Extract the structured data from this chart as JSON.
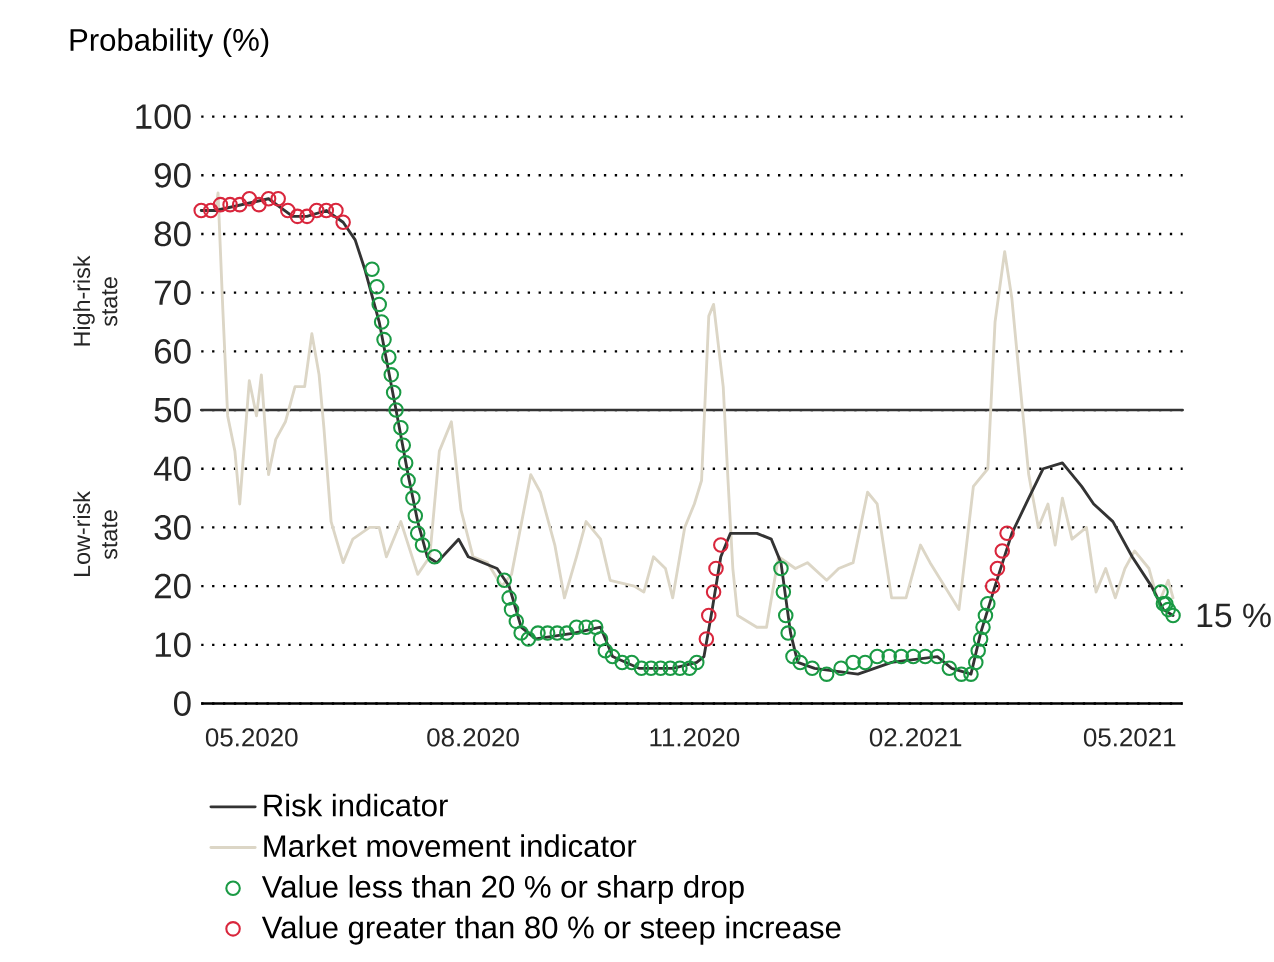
{
  "chart_data": {
    "type": "line",
    "ylabel": "Probability (%)",
    "xlim": [
      "2020-04-10",
      "2021-05-23"
    ],
    "xticks": [
      {
        "value": "2020-05-01",
        "label": "05.2020"
      },
      {
        "value": "2020-08-01",
        "label": "08.2020"
      },
      {
        "value": "2020-11-01",
        "label": "11.2020"
      },
      {
        "value": "2021-02-01",
        "label": "02.2021"
      },
      {
        "value": "2021-05-01",
        "label": "05.2021"
      }
    ],
    "ylim": [
      0,
      100
    ],
    "yticks": [
      0,
      10,
      20,
      30,
      40,
      50,
      60,
      70,
      80,
      90,
      100
    ],
    "grid": "y",
    "legend": "bottom",
    "ref_lines": [
      {
        "axis": "y",
        "value": 50,
        "color": "#333333"
      }
    ],
    "annotations": [
      "High-risk state",
      "Low-risk state",
      {
        "text": "15 %",
        "x": "2021-05-19",
        "y": 15
      }
    ],
    "series": [
      {
        "name": "Risk indicator",
        "type": "line",
        "color": "#333333",
        "x": [
          "2020-04-10",
          "2020-04-16",
          "2020-05-08",
          "2020-05-18",
          "2020-05-24",
          "2020-06-01",
          "2020-06-08",
          "2020-06-13",
          "2020-06-17",
          "2020-06-23",
          "2020-06-30",
          "2020-07-05",
          "2020-07-09",
          "2020-07-13",
          "2020-07-17",
          "2020-07-26",
          "2020-07-30",
          "2020-08-11",
          "2020-08-16",
          "2020-08-21",
          "2020-08-27",
          "2020-09-12",
          "2020-09-23",
          "2020-09-28",
          "2020-10-09",
          "2020-10-23",
          "2020-11-02",
          "2020-11-05",
          "2020-11-08",
          "2020-11-12",
          "2020-11-16",
          "2020-11-27",
          "2020-12-03",
          "2020-12-07",
          "2020-12-11",
          "2020-12-14",
          "2020-12-21",
          "2021-01-08",
          "2021-01-22",
          "2021-02-10",
          "2021-02-16",
          "2021-02-24",
          "2021-02-28",
          "2021-03-06",
          "2021-03-13",
          "2021-03-20",
          "2021-03-26",
          "2021-04-03",
          "2021-04-11",
          "2021-04-16",
          "2021-04-24",
          "2021-05-02",
          "2021-05-10",
          "2021-05-15",
          "2021-05-19"
        ],
        "values": [
          84,
          84,
          86,
          83,
          83,
          84,
          82,
          79,
          74,
          65,
          50,
          39,
          31,
          25,
          24,
          28,
          25,
          23,
          20,
          13,
          11,
          12,
          13,
          8,
          6,
          6,
          7,
          8,
          15,
          25,
          29,
          29,
          28,
          24,
          12,
          7,
          6,
          5,
          7,
          8,
          6,
          5,
          12,
          20,
          29,
          35,
          40,
          41,
          37,
          34,
          31,
          25,
          20,
          16,
          15
        ]
      },
      {
        "name": "Market movement indicator",
        "type": "line",
        "color": "#dcd6c6",
        "x": [
          "2020-04-16",
          "2020-04-17",
          "2020-04-19",
          "2020-04-21",
          "2020-04-24",
          "2020-04-26",
          "2020-04-30",
          "2020-05-03",
          "2020-05-05",
          "2020-05-08",
          "2020-05-11",
          "2020-05-15",
          "2020-05-19",
          "2020-05-23",
          "2020-05-26",
          "2020-05-29",
          "2020-05-31",
          "2020-06-03",
          "2020-06-08",
          "2020-06-12",
          "2020-06-19",
          "2020-06-23",
          "2020-06-26",
          "2020-07-02",
          "2020-07-09",
          "2020-07-14",
          "2020-07-18",
          "2020-07-23",
          "2020-07-27",
          "2020-08-01",
          "2020-08-07",
          "2020-08-13",
          "2020-08-17",
          "2020-08-25",
          "2020-08-29",
          "2020-09-04",
          "2020-09-08",
          "2020-09-13",
          "2020-09-17",
          "2020-09-23",
          "2020-09-27",
          "2020-10-07",
          "2020-10-11",
          "2020-10-15",
          "2020-10-20",
          "2020-10-23",
          "2020-10-28",
          "2020-11-01",
          "2020-11-04",
          "2020-11-07",
          "2020-11-09",
          "2020-11-13",
          "2020-11-15",
          "2020-11-17",
          "2020-11-19",
          "2020-11-27",
          "2020-12-01",
          "2020-12-06",
          "2020-12-13",
          "2020-12-18",
          "2020-12-26",
          "2020-12-31",
          "2021-01-06",
          "2021-01-12",
          "2021-01-16",
          "2021-01-22",
          "2021-01-28",
          "2021-02-03",
          "2021-02-07",
          "2021-02-13",
          "2021-02-19",
          "2021-02-25",
          "2021-03-03",
          "2021-03-06",
          "2021-03-10",
          "2021-03-13",
          "2021-03-16",
          "2021-03-20",
          "2021-03-24",
          "2021-03-28",
          "2021-03-31",
          "2021-04-03",
          "2021-04-07",
          "2021-04-13",
          "2021-04-17",
          "2021-04-21",
          "2021-04-25",
          "2021-04-29",
          "2021-05-03",
          "2021-05-09",
          "2021-05-13",
          "2021-05-17",
          "2021-05-19"
        ],
        "values": [
          84,
          87,
          67,
          49,
          43,
          34,
          55,
          49,
          56,
          39,
          45,
          48,
          54,
          54,
          63,
          56,
          47,
          31,
          24,
          28,
          30,
          30,
          25,
          31,
          22,
          25,
          43,
          48,
          33,
          25,
          24,
          20,
          22,
          39,
          36,
          27,
          18,
          25,
          31,
          28,
          21,
          20,
          19,
          25,
          23,
          18,
          30,
          34,
          38,
          66,
          68,
          54,
          38,
          23,
          15,
          13,
          13,
          25,
          23,
          24,
          21,
          23,
          24,
          36,
          34,
          18,
          18,
          27,
          24,
          20,
          16,
          37,
          40,
          65,
          77,
          69,
          56,
          39,
          30,
          34,
          27,
          35,
          28,
          30,
          19,
          23,
          18,
          23,
          26,
          23,
          17,
          21,
          18
        ]
      },
      {
        "name": "Value less than 20 % or sharp drop",
        "type": "scatter",
        "marker": "circle",
        "color": "#1a9a44",
        "x": [
          "2020-06-20",
          "2020-06-22",
          "2020-06-23",
          "2020-06-24",
          "2020-06-25",
          "2020-06-27",
          "2020-06-28",
          "2020-06-29",
          "2020-06-30",
          "2020-07-02",
          "2020-07-03",
          "2020-07-04",
          "2020-07-05",
          "2020-07-07",
          "2020-07-08",
          "2020-07-09",
          "2020-07-11",
          "2020-07-16",
          "2020-08-14",
          "2020-08-16",
          "2020-08-17",
          "2020-08-19",
          "2020-08-21",
          "2020-08-24",
          "2020-08-28",
          "2020-09-01",
          "2020-09-05",
          "2020-09-09",
          "2020-09-13",
          "2020-09-17",
          "2020-09-21",
          "2020-09-23",
          "2020-09-25",
          "2020-09-28",
          "2020-10-02",
          "2020-10-06",
          "2020-10-10",
          "2020-10-14",
          "2020-10-18",
          "2020-10-22",
          "2020-10-26",
          "2020-10-30",
          "2020-11-02",
          "2020-12-07",
          "2020-12-08",
          "2020-12-09",
          "2020-12-10",
          "2020-12-12",
          "2020-12-15",
          "2020-12-20",
          "2020-12-26",
          "2021-01-01",
          "2021-01-06",
          "2021-01-11",
          "2021-01-16",
          "2021-01-21",
          "2021-01-26",
          "2021-01-31",
          "2021-02-05",
          "2021-02-10",
          "2021-02-15",
          "2021-02-20",
          "2021-02-24",
          "2021-02-26",
          "2021-02-27",
          "2021-02-28",
          "2021-03-01",
          "2021-03-02",
          "2021-03-03",
          "2021-05-14",
          "2021-05-15",
          "2021-05-16",
          "2021-05-17",
          "2021-05-19"
        ],
        "values": [
          74,
          71,
          68,
          65,
          62,
          59,
          56,
          53,
          50,
          47,
          44,
          41,
          38,
          35,
          32,
          29,
          27,
          25,
          21,
          18,
          16,
          14,
          12,
          11,
          12,
          12,
          12,
          12,
          13,
          13,
          13,
          11,
          9,
          8,
          7,
          7,
          6,
          6,
          6,
          6,
          6,
          6,
          7,
          23,
          19,
          15,
          12,
          8,
          7,
          6,
          5,
          6,
          7,
          7,
          8,
          8,
          8,
          8,
          8,
          8,
          6,
          5,
          5,
          7,
          9,
          11,
          13,
          15,
          17,
          19,
          17,
          17,
          16,
          15
        ]
      },
      {
        "name": "Value greater than 80 % or steep increase",
        "type": "scatter",
        "marker": "circle",
        "color": "#d9263c",
        "x": [
          "2020-04-10",
          "2020-04-14",
          "2020-04-18",
          "2020-04-22",
          "2020-04-26",
          "2020-04-30",
          "2020-05-04",
          "2020-05-08",
          "2020-05-12",
          "2020-05-16",
          "2020-05-20",
          "2020-05-24",
          "2020-05-28",
          "2020-06-01",
          "2020-06-05",
          "2020-06-08",
          "2020-11-06",
          "2020-11-07",
          "2020-11-09",
          "2020-11-10",
          "2020-11-12",
          "2021-03-05",
          "2021-03-07",
          "2021-03-09",
          "2021-03-11"
        ],
        "values": [
          84,
          84,
          85,
          85,
          85,
          86,
          85,
          86,
          86,
          84,
          83,
          83,
          84,
          84,
          84,
          82,
          11,
          15,
          19,
          23,
          27,
          20,
          23,
          26,
          29
        ]
      }
    ]
  }
}
